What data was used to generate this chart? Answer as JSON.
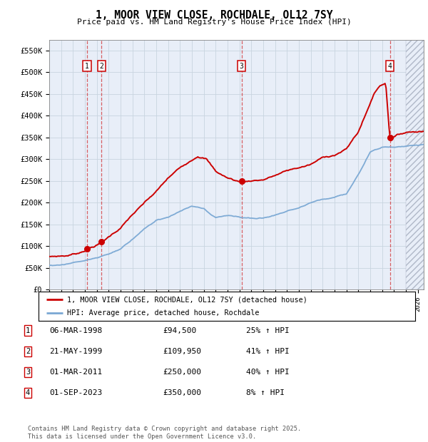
{
  "title": "1, MOOR VIEW CLOSE, ROCHDALE, OL12 7SY",
  "subtitle": "Price paid vs. HM Land Registry's House Price Index (HPI)",
  "ylim": [
    0,
    575000
  ],
  "yticks": [
    0,
    50000,
    100000,
    150000,
    200000,
    250000,
    300000,
    350000,
    400000,
    450000,
    500000,
    550000
  ],
  "xlim_start": 1995.0,
  "xlim_end": 2026.5,
  "sale_dates": [
    1998.18,
    1999.39,
    2011.17,
    2023.67
  ],
  "sale_prices": [
    94500,
    109950,
    250000,
    350000
  ],
  "sale_labels": [
    "1",
    "2",
    "3",
    "4"
  ],
  "sale_info": [
    {
      "num": "1",
      "date": "06-MAR-1998",
      "price": "£94,500",
      "pct": "25% ↑ HPI"
    },
    {
      "num": "2",
      "date": "21-MAY-1999",
      "price": "£109,950",
      "pct": "41% ↑ HPI"
    },
    {
      "num": "3",
      "date": "01-MAR-2011",
      "price": "£250,000",
      "pct": "40% ↑ HPI"
    },
    {
      "num": "4",
      "date": "01-SEP-2023",
      "price": "£350,000",
      "pct": "8% ↑ HPI"
    }
  ],
  "legend_line1": "1, MOOR VIEW CLOSE, ROCHDALE, OL12 7SY (detached house)",
  "legend_line2": "HPI: Average price, detached house, Rochdale",
  "footer": "Contains HM Land Registry data © Crown copyright and database right 2025.\nThis data is licensed under the Open Government Licence v3.0.",
  "red_color": "#cc0000",
  "blue_color": "#7aa8d4",
  "grid_color": "#c8d4e0",
  "bg_color": "#e8eef8",
  "future_start": 2025.0
}
